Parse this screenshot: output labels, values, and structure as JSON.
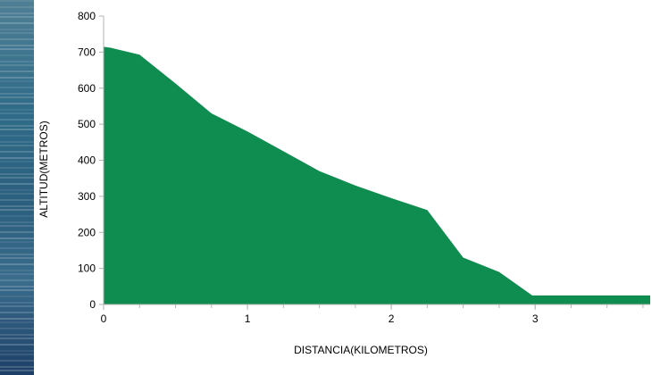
{
  "chart_data": {
    "type": "area",
    "xlabel": "DISTANCIA(KILOMETROS)",
    "ylabel": "ALTITUD(METROS)",
    "xlim": [
      0,
      3.8
    ],
    "ylim": [
      0,
      800
    ],
    "x_ticks": [
      0,
      1,
      2,
      3
    ],
    "y_ticks": [
      0,
      100,
      200,
      300,
      400,
      500,
      600,
      700,
      800
    ],
    "grid": false,
    "legend": "none",
    "fill_color": "#0f8c4f",
    "series": [
      {
        "x": [
          0,
          0.05,
          0.25,
          0.5,
          0.75,
          1.0,
          1.25,
          1.5,
          1.75,
          2.0,
          2.25,
          2.5,
          2.75,
          2.98,
          3.05,
          3.25,
          3.5,
          3.65,
          3.8
        ],
        "y": [
          715,
          712,
          693,
          613,
          530,
          480,
          425,
          370,
          330,
          295,
          262,
          130,
          90,
          25,
          25,
          25,
          25,
          25,
          25
        ]
      }
    ]
  }
}
